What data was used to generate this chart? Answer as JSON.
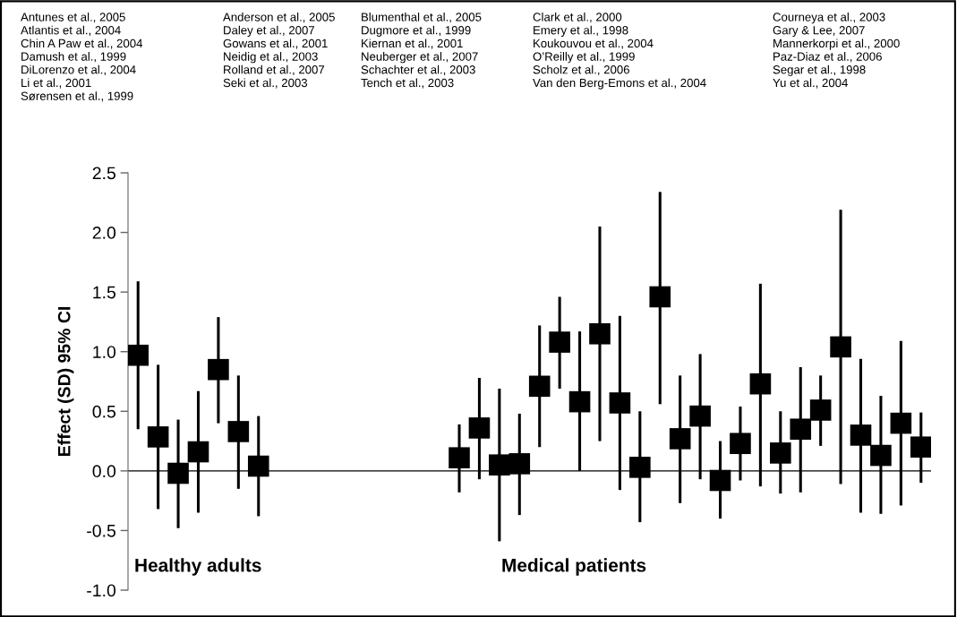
{
  "chart_data": {
    "type": "scatter",
    "ylabel": "Effect (SD) 95% CI",
    "categories": [
      null,
      null,
      null,
      null,
      null,
      null,
      null,
      null,
      null,
      null,
      null,
      null,
      null,
      null,
      null,
      null,
      null,
      null,
      null,
      null,
      null,
      null,
      null,
      null,
      null,
      null,
      null,
      null,
      null,
      null,
      null,
      null,
      null,
      null,
      null,
      null,
      null,
      null,
      null,
      null
    ],
    "series": [
      {
        "color": "#000000",
        "values": [
          0.97,
          0.285,
          -0.02,
          0.16,
          0.85,
          0.33,
          0.04,
          null,
          null,
          null,
          null,
          null,
          null,
          null,
          null,
          null,
          0.11,
          0.36,
          0.05,
          0.06,
          0.71,
          1.08,
          0.58,
          1.15,
          0.57,
          0.03,
          1.46,
          0.27,
          0.46,
          -0.08,
          0.23,
          0.73,
          0.15,
          0.35,
          0.51,
          1.04,
          0.3,
          0.13,
          0.4,
          0.2
        ],
        "errors": [
          [
            0.35,
            1.59
          ],
          [
            -0.32,
            0.89
          ],
          [
            -0.48,
            0.43
          ],
          [
            -0.35,
            0.67
          ],
          [
            0.4,
            1.29
          ],
          [
            -0.15,
            0.8
          ],
          [
            -0.38,
            0.46
          ],
          null,
          null,
          null,
          null,
          null,
          null,
          null,
          null,
          null,
          [
            -0.18,
            0.39
          ],
          [
            -0.07,
            0.78
          ],
          [
            -0.59,
            0.69
          ],
          [
            -0.37,
            0.48
          ],
          [
            0.2,
            1.22
          ],
          [
            0.69,
            1.46
          ],
          [
            0.0,
            1.17
          ],
          [
            0.25,
            2.05
          ],
          [
            -0.16,
            1.3
          ],
          [
            -0.43,
            0.5
          ],
          [
            0.56,
            2.34
          ],
          [
            -0.27,
            0.8
          ],
          [
            -0.07,
            0.98
          ],
          [
            -0.4,
            0.25
          ],
          [
            -0.08,
            0.54
          ],
          [
            -0.13,
            1.57
          ],
          [
            -0.19,
            0.5
          ],
          [
            -0.18,
            0.87
          ],
          [
            0.21,
            0.8
          ],
          [
            -0.11,
            2.19
          ],
          [
            -0.35,
            0.94
          ],
          [
            -0.36,
            0.63
          ],
          [
            -0.29,
            1.09
          ],
          [
            -0.1,
            0.49
          ]
        ]
      }
    ],
    "marker": "square",
    "grid": false,
    "legend": false,
    "ylim": [
      -1.0,
      2.5
    ],
    "yticks": [
      {
        "value": -1.0,
        "label": "-1.0"
      },
      {
        "value": -0.5,
        "label": "-0.5"
      },
      {
        "value": 0.0,
        "label": "0.0"
      },
      {
        "value": 0.5,
        "label": "0.5"
      },
      {
        "value": 1.0,
        "label": "1.0"
      },
      {
        "value": 1.5,
        "label": "1.5"
      },
      {
        "value": 2.0,
        "label": "2.0"
      },
      {
        "value": 2.5,
        "label": "2.5"
      }
    ],
    "ref_lines": [
      {
        "axis": "y",
        "value": 0.0,
        "color": "#000000",
        "line_style": "solid"
      }
    ],
    "annotations": [
      "Antunes et al., 2005\nAtlantis et al., 2004\nChin A Paw et al., 2004\nDamush et al., 1999\nDiLorenzo et al., 2004\nLi et al., 2001\nSørensen et al., 1999",
      "Anderson et al., 2005\nDaley et al., 2007\nGowans et al., 2001\nNeidig et al., 2003\nRolland et al., 2007\nSeki et al., 2003",
      "Blumenthal et al., 2005\nDugmore et al., 1999\nKiernan et al., 2001\nNeuberger et al., 2007\nSchachter et al., 2003\nTench et al., 2003",
      "Clark et al., 2000\nEmery et al., 1998\nKoukouvou et al., 2004\nO’Reilly et al., 1999\nScholz et al., 2006\nVan den Berg-Emons et al., 2004",
      "Courneya et al., 2003\nGary & Lee, 2007\nMannerkorpi et al., 2000\nPaz-Diaz et al., 2006\nSegar et al., 1998\nYu et al., 2004",
      "Healthy adults",
      "Medical patients"
    ]
  }
}
